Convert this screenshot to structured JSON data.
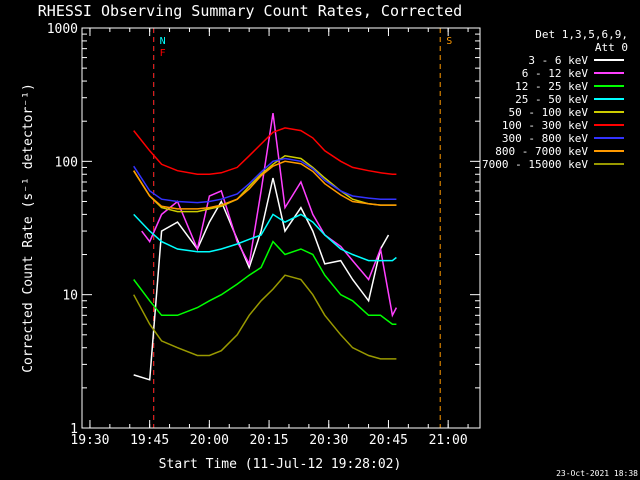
{
  "chart_data": {
    "type": "line",
    "title": "RHESSI Observing Summary Count Rates, Corrected",
    "xlabel": "Start Time (11-Jul-12 19:28:02)",
    "ylabel": "Corrected Count Rate (s⁻¹ detector⁻¹)",
    "yscale": "log",
    "ylim": [
      1,
      1000
    ],
    "xlim": [
      "19:28",
      "21:08"
    ],
    "x_ticks": [
      "19:30",
      "19:45",
      "20:00",
      "20:15",
      "20:30",
      "20:45",
      "21:00"
    ],
    "y_ticks": [
      "1",
      "10",
      "100",
      "1000"
    ],
    "legend_title": [
      "Det 1,3,5,6,9,",
      "Att 0"
    ],
    "legend_position": "right",
    "series": [
      {
        "name": "3 - 6 keV",
        "color": "#ffffff",
        "x": [
          "19:41",
          "19:45",
          "19:48",
          "19:52",
          "19:57",
          "20:00",
          "20:03",
          "20:07",
          "20:10",
          "20:13",
          "20:16",
          "20:19",
          "20:23",
          "20:26",
          "20:29",
          "20:33",
          "20:36",
          "20:40",
          "20:43",
          "20:45"
        ],
        "values": [
          2.5,
          2.3,
          30,
          35,
          22,
          35,
          50,
          26,
          16,
          30,
          75,
          30,
          45,
          30,
          17,
          18,
          13,
          9,
          22,
          28
        ]
      },
      {
        "name": "6 - 12 keV",
        "color": "#ff40ff",
        "x": [
          "19:43",
          "19:45",
          "19:48",
          "19:52",
          "19:57",
          "20:00",
          "20:03",
          "20:07",
          "20:10",
          "20:13",
          "20:16",
          "20:19",
          "20:23",
          "20:26",
          "20:29",
          "20:33",
          "20:36",
          "20:40",
          "20:43",
          "20:46",
          "20:47"
        ],
        "values": [
          30,
          25,
          40,
          50,
          22,
          55,
          60,
          25,
          17,
          60,
          230,
          45,
          70,
          40,
          28,
          23,
          18,
          13,
          22,
          7,
          8
        ]
      },
      {
        "name": "12 - 25 keV",
        "color": "#00ff00",
        "x": [
          "19:41",
          "19:45",
          "19:48",
          "19:52",
          "19:57",
          "20:00",
          "20:03",
          "20:07",
          "20:10",
          "20:13",
          "20:16",
          "20:19",
          "20:23",
          "20:26",
          "20:29",
          "20:33",
          "20:36",
          "20:40",
          "20:43",
          "20:46",
          "20:47"
        ],
        "values": [
          13,
          9,
          7,
          7,
          8,
          9,
          10,
          12,
          14,
          16,
          25,
          20,
          22,
          20,
          14,
          10,
          9,
          7,
          7,
          6,
          6
        ]
      },
      {
        "name": "25 - 50 keV",
        "color": "#00ffff",
        "x": [
          "19:41",
          "19:45",
          "19:48",
          "19:52",
          "19:57",
          "20:00",
          "20:03",
          "20:07",
          "20:10",
          "20:13",
          "20:16",
          "20:19",
          "20:23",
          "20:26",
          "20:29",
          "20:33",
          "20:36",
          "20:40",
          "20:43",
          "20:46",
          "20:47"
        ],
        "values": [
          40,
          30,
          25,
          22,
          21,
          21,
          22,
          24,
          26,
          28,
          40,
          35,
          40,
          35,
          28,
          22,
          20,
          18,
          18,
          18,
          19
        ]
      },
      {
        "name": "50 - 100 keV",
        "color": "#cccc00",
        "x": [
          "19:41",
          "19:45",
          "19:48",
          "19:52",
          "19:57",
          "20:00",
          "20:03",
          "20:07",
          "20:10",
          "20:13",
          "20:16",
          "20:19",
          "20:23",
          "20:26",
          "20:29",
          "20:33",
          "20:36",
          "20:40",
          "20:43",
          "20:46",
          "20:47"
        ],
        "values": [
          85,
          55,
          45,
          42,
          42,
          44,
          46,
          52,
          65,
          80,
          95,
          110,
          105,
          90,
          75,
          60,
          52,
          48,
          47,
          47,
          47
        ]
      },
      {
        "name": "100 - 300 keV",
        "color": "#ff0000",
        "x": [
          "19:41",
          "19:45",
          "19:48",
          "19:52",
          "19:57",
          "20:00",
          "20:03",
          "20:07",
          "20:10",
          "20:13",
          "20:16",
          "20:19",
          "20:23",
          "20:26",
          "20:29",
          "20:33",
          "20:36",
          "20:40",
          "20:43",
          "20:46",
          "20:47"
        ],
        "values": [
          170,
          120,
          95,
          85,
          80,
          80,
          82,
          90,
          110,
          135,
          165,
          178,
          170,
          150,
          120,
          100,
          90,
          85,
          82,
          80,
          80
        ]
      },
      {
        "name": "300 - 800 keV",
        "color": "#3333ff",
        "x": [
          "19:41",
          "19:45",
          "19:48",
          "19:52",
          "19:57",
          "20:00",
          "20:03",
          "20:07",
          "20:10",
          "20:13",
          "20:16",
          "20:19",
          "20:23",
          "20:26",
          "20:29",
          "20:33",
          "20:36",
          "20:40",
          "20:43",
          "20:46",
          "20:47"
        ],
        "values": [
          92,
          60,
          52,
          50,
          49,
          50,
          52,
          57,
          68,
          83,
          100,
          105,
          100,
          88,
          72,
          60,
          55,
          53,
          52,
          52,
          52
        ]
      },
      {
        "name": "800 - 7000 keV",
        "color": "#ff9900",
        "x": [
          "19:41",
          "19:45",
          "19:48",
          "19:52",
          "19:57",
          "20:00",
          "20:03",
          "20:07",
          "20:10",
          "20:13",
          "20:16",
          "20:19",
          "20:23",
          "20:26",
          "20:29",
          "20:33",
          "20:36",
          "20:40",
          "20:43",
          "20:46",
          "20:47"
        ],
        "values": [
          85,
          55,
          46,
          44,
          44,
          45,
          47,
          52,
          62,
          78,
          92,
          100,
          96,
          84,
          68,
          56,
          50,
          48,
          47,
          47,
          47
        ]
      },
      {
        "name": "7000 - 15000 keV",
        "color": "#999900",
        "x": [
          "19:41",
          "19:45",
          "19:48",
          "19:52",
          "19:57",
          "20:00",
          "20:03",
          "20:07",
          "20:10",
          "20:13",
          "20:16",
          "20:19",
          "20:23",
          "20:26",
          "20:29",
          "20:33",
          "20:36",
          "20:40",
          "20:43",
          "20:46",
          "20:47"
        ],
        "values": [
          10,
          6,
          4.5,
          4,
          3.5,
          3.5,
          3.8,
          5,
          7,
          9,
          11,
          14,
          13,
          10,
          7,
          5,
          4,
          3.5,
          3.3,
          3.3,
          3.3
        ]
      }
    ],
    "flags": [
      {
        "label": "N",
        "color": "#00ffff",
        "x": "19:46"
      },
      {
        "label": "F",
        "color": "#ff0000",
        "x": "19:46"
      },
      {
        "label": "S",
        "color": "#ff9900",
        "x": "20:58"
      }
    ],
    "grid": false
  },
  "footer": {
    "timestamp": "23-Oct-2021 18:38"
  },
  "colors": {
    "background": "#000000",
    "axes": "#ffffff"
  }
}
